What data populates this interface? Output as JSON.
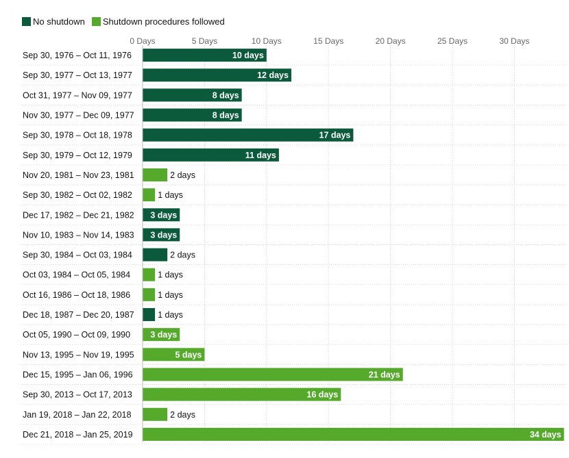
{
  "legend": {
    "items": [
      {
        "label": "No shutdown",
        "color": "#0b5a3c"
      },
      {
        "label": "Shutdown procedures followed",
        "color": "#55a92b"
      }
    ]
  },
  "chart_data": {
    "type": "bar",
    "orientation": "horizontal",
    "x_ticks": [
      0,
      5,
      10,
      15,
      20,
      25,
      30
    ],
    "x_tick_labels": [
      "0 Days",
      "5 Days",
      "10 Days",
      "15 Days",
      "20 Days",
      "25 Days",
      "30 Days"
    ],
    "xlim": [
      0,
      34
    ],
    "grid": "vertical dotted",
    "legend_position": "top-left",
    "colors": {
      "No shutdown": "#0b5a3c",
      "Shutdown procedures followed": "#55a92b"
    },
    "bars": [
      {
        "category": "Sep 30, 1976 – Oct 11, 1976",
        "value": 10,
        "label": "10 days",
        "series": "No shutdown"
      },
      {
        "category": "Sep 30, 1977 – Oct 13, 1977",
        "value": 12,
        "label": "12 days",
        "series": "No shutdown"
      },
      {
        "category": "Oct 31, 1977 – Nov 09, 1977",
        "value": 8,
        "label": "8 days",
        "series": "No shutdown"
      },
      {
        "category": "Nov 30, 1977 – Dec 09, 1977",
        "value": 8,
        "label": "8 days",
        "series": "No shutdown"
      },
      {
        "category": "Sep 30, 1978 – Oct 18, 1978",
        "value": 17,
        "label": "17 days",
        "series": "No shutdown"
      },
      {
        "category": "Sep 30, 1979 – Oct 12, 1979",
        "value": 11,
        "label": "11 days",
        "series": "No shutdown"
      },
      {
        "category": "Nov 20, 1981 – Nov 23, 1981",
        "value": 2,
        "label": "2 days",
        "series": "Shutdown procedures followed"
      },
      {
        "category": "Sep 30, 1982 – Oct 02, 1982",
        "value": 1,
        "label": "1 days",
        "series": "Shutdown procedures followed"
      },
      {
        "category": "Dec 17, 1982 – Dec 21, 1982",
        "value": 3,
        "label": "3 days",
        "series": "No shutdown"
      },
      {
        "category": "Nov 10, 1983 – Nov 14, 1983",
        "value": 3,
        "label": "3 days",
        "series": "No shutdown"
      },
      {
        "category": "Sep 30, 1984 – Oct 03, 1984",
        "value": 2,
        "label": "2 days",
        "series": "No shutdown"
      },
      {
        "category": "Oct 03, 1984 – Oct 05, 1984",
        "value": 1,
        "label": "1 days",
        "series": "Shutdown procedures followed"
      },
      {
        "category": "Oct 16, 1986 – Oct 18, 1986",
        "value": 1,
        "label": "1 days",
        "series": "Shutdown procedures followed"
      },
      {
        "category": "Dec 18, 1987 – Dec 20, 1987",
        "value": 1,
        "label": "1 days",
        "series": "No shutdown"
      },
      {
        "category": "Oct 05, 1990 – Oct 09, 1990",
        "value": 3,
        "label": "3 days",
        "series": "Shutdown procedures followed"
      },
      {
        "category": "Nov 13, 1995 – Nov 19, 1995",
        "value": 5,
        "label": "5 days",
        "series": "Shutdown procedures followed"
      },
      {
        "category": "Dec 15, 1995 – Jan 06, 1996",
        "value": 21,
        "label": "21 days",
        "series": "Shutdown procedures followed"
      },
      {
        "category": "Sep 30, 2013 – Oct 17, 2013",
        "value": 16,
        "label": "16 days",
        "series": "Shutdown procedures followed"
      },
      {
        "category": "Jan 19, 2018 – Jan 22, 2018",
        "value": 2,
        "label": "2 days",
        "series": "Shutdown procedures followed"
      },
      {
        "category": "Dec 21, 2018 – Jan 25, 2019",
        "value": 34,
        "label": "34 days",
        "series": "Shutdown procedures followed"
      }
    ]
  }
}
